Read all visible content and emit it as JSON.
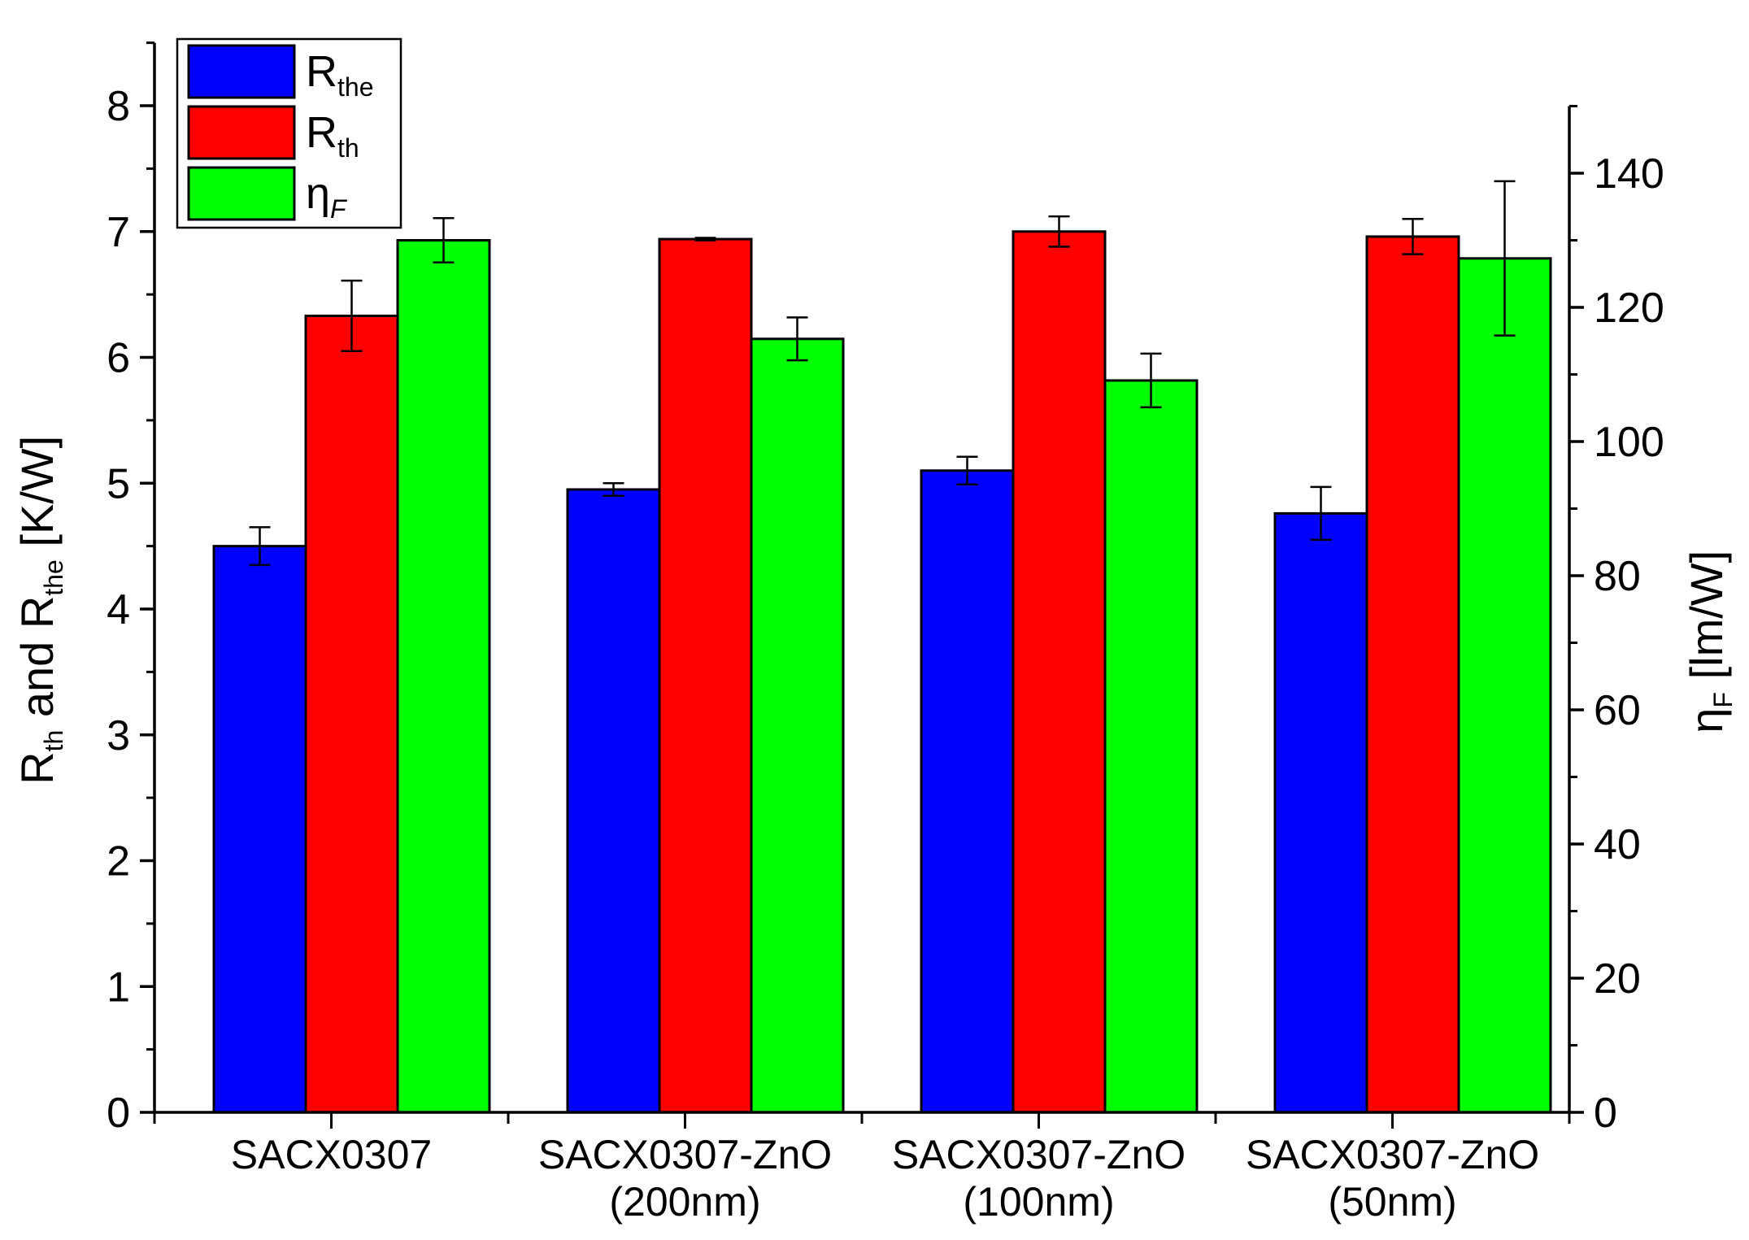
{
  "chart_data": {
    "type": "bar",
    "categories": [
      [
        "SACX0307"
      ],
      [
        "SACX0307-ZnO",
        "(200nm)"
      ],
      [
        "SACX0307-ZnO",
        "(100nm)"
      ],
      [
        "SACX0307-ZnO",
        "(50nm)"
      ]
    ],
    "series": [
      {
        "name": "R",
        "sub": "the",
        "axis": "left",
        "color": "#0000ff",
        "values": [
          4.5,
          4.95,
          5.1,
          4.76
        ],
        "errors": [
          0.15,
          0.05,
          0.11,
          0.21
        ]
      },
      {
        "name": "R",
        "sub": "th",
        "axis": "left",
        "color": "#ff0000",
        "values": [
          6.33,
          6.94,
          7.0,
          6.96
        ],
        "errors": [
          0.28,
          0.01,
          0.12,
          0.14
        ]
      },
      {
        "name": "η",
        "sub": "F",
        "axis": "right",
        "color": "#00ff00",
        "values": [
          130.0,
          115.3,
          109.1,
          127.3
        ],
        "errors": [
          3.3,
          3.2,
          4.0,
          11.5
        ]
      }
    ],
    "left_axis": {
      "title_parts": [
        {
          "text": "R",
          "sub": false
        },
        {
          "text": "th",
          "sub": true
        },
        {
          "text": " and R",
          "sub": false
        },
        {
          "text": "the",
          "sub": true
        },
        {
          "text": " [K/W]",
          "sub": false
        }
      ],
      "ylim": [
        0,
        8.5
      ],
      "ticks": [
        0,
        1,
        2,
        3,
        4,
        5,
        6,
        7,
        8
      ]
    },
    "right_axis": {
      "title_parts": [
        {
          "text": "η",
          "sub": false
        },
        {
          "text": "F",
          "sub": true
        },
        {
          "text": " [lm/W]",
          "sub": false
        }
      ],
      "ylim": [
        0,
        150
      ],
      "ticks": [
        0,
        20,
        40,
        60,
        80,
        100,
        120,
        140
      ]
    },
    "legend_position": "top-left"
  }
}
